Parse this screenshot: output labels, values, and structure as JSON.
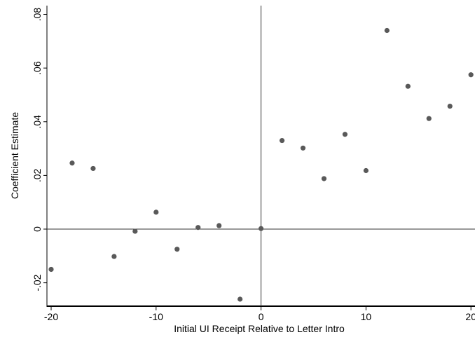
{
  "chart_data": {
    "type": "scatter",
    "title": "",
    "xlabel": "Initial UI Receipt Relative to Letter Intro",
    "ylabel": "Coefficient Estimate",
    "xlim": [
      -20.2,
      20.3
    ],
    "ylim": [
      -0.029,
      0.082
    ],
    "x_ticks": [
      -20,
      -10,
      0,
      10,
      20
    ],
    "x_tick_labels": [
      "-20",
      "-10",
      "0",
      "10",
      "20"
    ],
    "y_ticks": [
      -0.02,
      0,
      0.02,
      0.04,
      0.06,
      0.08
    ],
    "y_tick_labels": [
      "-.02",
      "0",
      ".02",
      ".04",
      ".06",
      ".08"
    ],
    "reference_lines": {
      "x": 0,
      "y": 0
    },
    "grid": false,
    "legend": "none",
    "marker_color": "#595959",
    "axis_color": "#000000",
    "points": [
      {
        "x": -20,
        "y": -0.015
      },
      {
        "x": -18,
        "y": 0.0246
      },
      {
        "x": -16,
        "y": 0.0226
      },
      {
        "x": -14,
        "y": -0.0102
      },
      {
        "x": -12,
        "y": -0.0008
      },
      {
        "x": -10,
        "y": 0.0063
      },
      {
        "x": -8,
        "y": -0.0075
      },
      {
        "x": -6,
        "y": 0.0006
      },
      {
        "x": -4,
        "y": 0.0013
      },
      {
        "x": -2,
        "y": -0.0261
      },
      {
        "x": 0,
        "y": 0.0002
      },
      {
        "x": 2,
        "y": 0.033
      },
      {
        "x": 4,
        "y": 0.0302
      },
      {
        "x": 6,
        "y": 0.0188
      },
      {
        "x": 8,
        "y": 0.0353
      },
      {
        "x": 10,
        "y": 0.0218
      },
      {
        "x": 12,
        "y": 0.074
      },
      {
        "x": 14,
        "y": 0.0532
      },
      {
        "x": 16,
        "y": 0.0412
      },
      {
        "x": 18,
        "y": 0.0458
      },
      {
        "x": 20,
        "y": 0.0575
      }
    ]
  }
}
